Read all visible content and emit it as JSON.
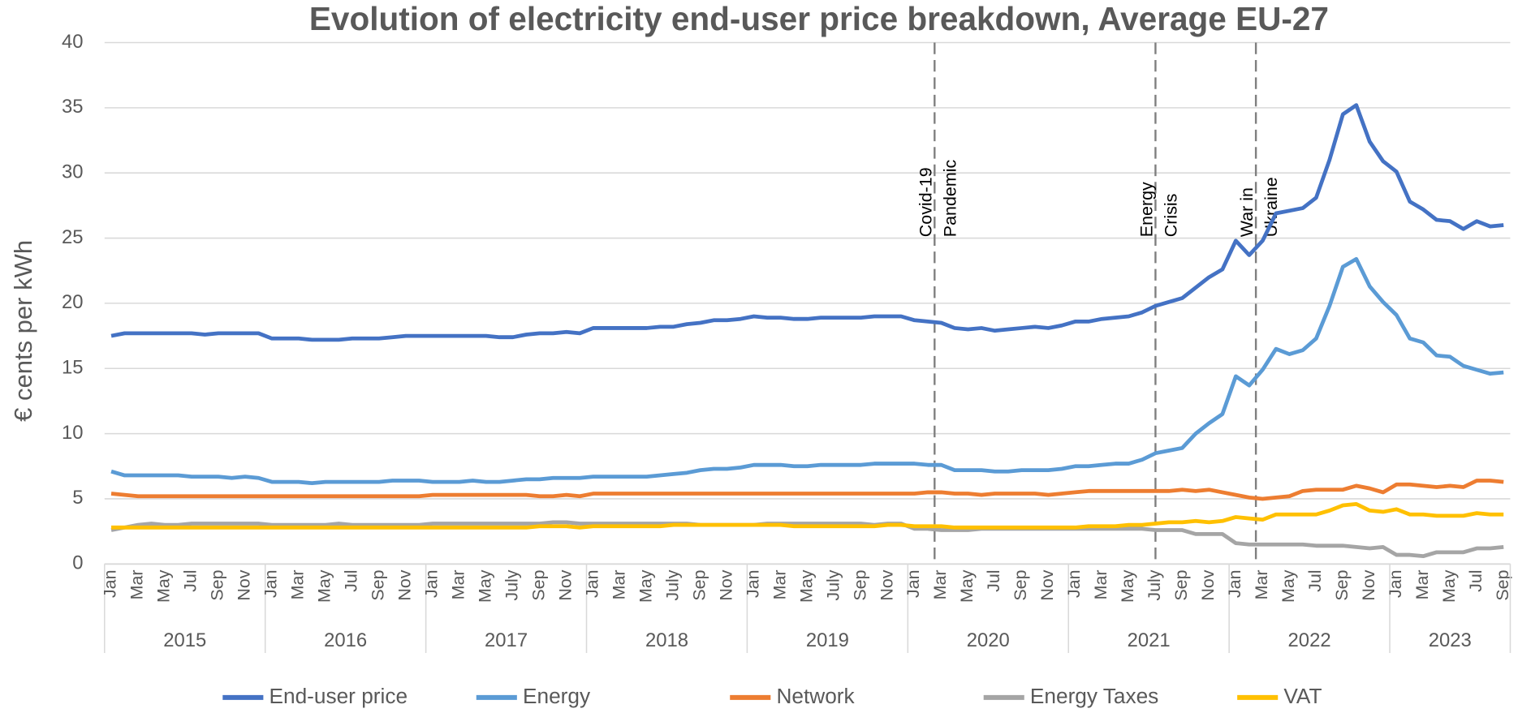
{
  "chart_data": {
    "type": "line",
    "title": "Evolution of electricity end-user price breakdown, Average EU-27",
    "y_label": "€ cents per kWh",
    "ylim": [
      0,
      40
    ],
    "yticks": [
      0,
      5,
      10,
      15,
      20,
      25,
      30,
      35,
      40
    ],
    "grid": true,
    "legend": "bottom",
    "category_groups": [
      {
        "label": "2015",
        "categories": [
          "Jan",
          null,
          "Mar",
          null,
          "May",
          null,
          "Jul",
          null,
          "Sep",
          null,
          "Nov",
          null
        ]
      },
      {
        "label": "2016",
        "categories": [
          "Jan",
          null,
          "Mar",
          null,
          "May",
          null,
          "Jul",
          null,
          "Sep",
          null,
          "Nov",
          null
        ]
      },
      {
        "label": "2017",
        "categories": [
          "Jan",
          null,
          "Mar",
          null,
          "May",
          null,
          "July",
          null,
          "Sep",
          null,
          "Nov",
          null
        ]
      },
      {
        "label": "2018",
        "categories": [
          "Jan",
          null,
          "Mar",
          null,
          "May",
          null,
          "July",
          null,
          "Sep",
          null,
          "Nov",
          null
        ]
      },
      {
        "label": "2019",
        "categories": [
          "Jan",
          null,
          "Mar",
          null,
          "May",
          null,
          "July",
          null,
          "Sep",
          null,
          "Nov",
          null
        ]
      },
      {
        "label": "2020",
        "categories": [
          "Jan",
          null,
          "Mar",
          null,
          "May",
          null,
          "Jul",
          null,
          "Sep",
          null,
          "Nov",
          null
        ]
      },
      {
        "label": "2021",
        "categories": [
          "Jan",
          null,
          "Mar",
          null,
          "May",
          null,
          "July",
          null,
          "Sep",
          null,
          "Nov",
          null
        ]
      },
      {
        "label": "2022",
        "categories": [
          "Jan",
          null,
          "Mar",
          null,
          "May",
          null,
          "Jul",
          null,
          "Sep",
          null,
          "Nov",
          null
        ]
      },
      {
        "label": "2023",
        "categories": [
          "Jan",
          null,
          "Mar",
          null,
          "May",
          null,
          "Jul",
          null,
          "Sep"
        ]
      }
    ],
    "events": [
      {
        "label": [
          "Covid-19",
          "Pandemic"
        ],
        "x": 61.5
      },
      {
        "label": [
          "Energy",
          "Crisis"
        ],
        "x": 78
      },
      {
        "label": [
          "War in",
          "Ukraine"
        ],
        "x": 85.5
      }
    ],
    "series": [
      {
        "name": "End-user price",
        "color": "#4472c4",
        "values": [
          17.5,
          17.7,
          17.7,
          17.7,
          17.7,
          17.7,
          17.7,
          17.6,
          17.7,
          17.7,
          17.7,
          17.7,
          17.3,
          17.3,
          17.3,
          17.2,
          17.2,
          17.2,
          17.3,
          17.3,
          17.3,
          17.4,
          17.5,
          17.5,
          17.5,
          17.5,
          17.5,
          17.5,
          17.5,
          17.4,
          17.4,
          17.6,
          17.7,
          17.7,
          17.8,
          17.7,
          18.1,
          18.1,
          18.1,
          18.1,
          18.1,
          18.2,
          18.2,
          18.4,
          18.5,
          18.7,
          18.7,
          18.8,
          19.0,
          18.9,
          18.9,
          18.8,
          18.8,
          18.9,
          18.9,
          18.9,
          18.9,
          19.0,
          19.0,
          19.0,
          18.7,
          18.6,
          18.5,
          18.1,
          18.0,
          18.1,
          17.9,
          18.0,
          18.1,
          18.2,
          18.1,
          18.3,
          18.6,
          18.6,
          18.8,
          18.9,
          19.0,
          19.3,
          19.8,
          20.1,
          20.4,
          21.2,
          22.0,
          22.6,
          24.8,
          23.7,
          24.8,
          26.9,
          27.1,
          27.3,
          28.1,
          31.0,
          34.5,
          35.2,
          32.4,
          30.9,
          30.1,
          27.8,
          27.2,
          26.4,
          26.3,
          25.7,
          26.3,
          25.9,
          26.0
        ]
      },
      {
        "name": "Energy",
        "color": "#5b9bd5",
        "values": [
          7.1,
          6.8,
          6.8,
          6.8,
          6.8,
          6.8,
          6.7,
          6.7,
          6.7,
          6.6,
          6.7,
          6.6,
          6.3,
          6.3,
          6.3,
          6.2,
          6.3,
          6.3,
          6.3,
          6.3,
          6.3,
          6.4,
          6.4,
          6.4,
          6.3,
          6.3,
          6.3,
          6.4,
          6.3,
          6.3,
          6.4,
          6.5,
          6.5,
          6.6,
          6.6,
          6.6,
          6.7,
          6.7,
          6.7,
          6.7,
          6.7,
          6.8,
          6.9,
          7.0,
          7.2,
          7.3,
          7.3,
          7.4,
          7.6,
          7.6,
          7.6,
          7.5,
          7.5,
          7.6,
          7.6,
          7.6,
          7.6,
          7.7,
          7.7,
          7.7,
          7.7,
          7.6,
          7.6,
          7.2,
          7.2,
          7.2,
          7.1,
          7.1,
          7.2,
          7.2,
          7.2,
          7.3,
          7.5,
          7.5,
          7.6,
          7.7,
          7.7,
          8.0,
          8.5,
          8.7,
          8.9,
          10.0,
          10.8,
          11.5,
          14.4,
          13.7,
          14.9,
          16.5,
          16.1,
          16.4,
          17.3,
          19.8,
          22.8,
          23.4,
          21.3,
          20.1,
          19.1,
          17.3,
          17.0,
          16.0,
          15.9,
          15.2,
          14.9,
          14.6,
          14.7
        ]
      },
      {
        "name": "Network",
        "color": "#ed7d31",
        "values": [
          5.4,
          5.3,
          5.2,
          5.2,
          5.2,
          5.2,
          5.2,
          5.2,
          5.2,
          5.2,
          5.2,
          5.2,
          5.2,
          5.2,
          5.2,
          5.2,
          5.2,
          5.2,
          5.2,
          5.2,
          5.2,
          5.2,
          5.2,
          5.2,
          5.3,
          5.3,
          5.3,
          5.3,
          5.3,
          5.3,
          5.3,
          5.3,
          5.2,
          5.2,
          5.3,
          5.2,
          5.4,
          5.4,
          5.4,
          5.4,
          5.4,
          5.4,
          5.4,
          5.4,
          5.4,
          5.4,
          5.4,
          5.4,
          5.4,
          5.4,
          5.4,
          5.4,
          5.4,
          5.4,
          5.4,
          5.4,
          5.4,
          5.4,
          5.4,
          5.4,
          5.4,
          5.5,
          5.5,
          5.4,
          5.4,
          5.3,
          5.4,
          5.4,
          5.4,
          5.4,
          5.3,
          5.4,
          5.5,
          5.6,
          5.6,
          5.6,
          5.6,
          5.6,
          5.6,
          5.6,
          5.7,
          5.6,
          5.7,
          5.5,
          5.3,
          5.1,
          5.0,
          5.1,
          5.2,
          5.6,
          5.7,
          5.7,
          5.7,
          6.0,
          5.8,
          5.5,
          6.1,
          6.1,
          6.0,
          5.9,
          6.0,
          5.9,
          6.4,
          6.4,
          6.3
        ]
      },
      {
        "name": "Energy Taxes",
        "color": "#a5a5a5",
        "values": [
          2.6,
          2.8,
          3.0,
          3.1,
          3.0,
          3.0,
          3.1,
          3.1,
          3.1,
          3.1,
          3.1,
          3.1,
          3.0,
          3.0,
          3.0,
          3.0,
          3.0,
          3.1,
          3.0,
          3.0,
          3.0,
          3.0,
          3.0,
          3.0,
          3.1,
          3.1,
          3.1,
          3.1,
          3.1,
          3.1,
          3.1,
          3.1,
          3.1,
          3.2,
          3.2,
          3.1,
          3.1,
          3.1,
          3.1,
          3.1,
          3.1,
          3.1,
          3.1,
          3.1,
          3.0,
          3.0,
          3.0,
          3.0,
          3.0,
          3.1,
          3.1,
          3.1,
          3.1,
          3.1,
          3.1,
          3.1,
          3.1,
          3.0,
          3.1,
          3.1,
          2.7,
          2.7,
          2.6,
          2.6,
          2.6,
          2.7,
          2.7,
          2.7,
          2.7,
          2.7,
          2.7,
          2.7,
          2.7,
          2.7,
          2.7,
          2.7,
          2.7,
          2.7,
          2.6,
          2.6,
          2.6,
          2.3,
          2.3,
          2.3,
          1.6,
          1.5,
          1.5,
          1.5,
          1.5,
          1.5,
          1.4,
          1.4,
          1.4,
          1.3,
          1.2,
          1.3,
          0.7,
          0.7,
          0.6,
          0.9,
          0.9,
          0.9,
          1.2,
          1.2,
          1.3
        ]
      },
      {
        "name": "VAT",
        "color": "#ffc000",
        "values": [
          2.8,
          2.8,
          2.8,
          2.8,
          2.8,
          2.8,
          2.8,
          2.8,
          2.8,
          2.8,
          2.8,
          2.8,
          2.8,
          2.8,
          2.8,
          2.8,
          2.8,
          2.8,
          2.8,
          2.8,
          2.8,
          2.8,
          2.8,
          2.8,
          2.8,
          2.8,
          2.8,
          2.8,
          2.8,
          2.8,
          2.8,
          2.8,
          2.9,
          2.9,
          2.9,
          2.8,
          2.9,
          2.9,
          2.9,
          2.9,
          2.9,
          2.9,
          3.0,
          3.0,
          3.0,
          3.0,
          3.0,
          3.0,
          3.0,
          3.0,
          3.0,
          2.9,
          2.9,
          2.9,
          2.9,
          2.9,
          2.9,
          2.9,
          3.0,
          3.0,
          2.9,
          2.9,
          2.9,
          2.8,
          2.8,
          2.8,
          2.8,
          2.8,
          2.8,
          2.8,
          2.8,
          2.8,
          2.8,
          2.9,
          2.9,
          2.9,
          3.0,
          3.0,
          3.1,
          3.2,
          3.2,
          3.3,
          3.2,
          3.3,
          3.6,
          3.5,
          3.4,
          3.8,
          3.8,
          3.8,
          3.8,
          4.1,
          4.5,
          4.6,
          4.1,
          4.0,
          4.2,
          3.8,
          3.8,
          3.7,
          3.7,
          3.7,
          3.9,
          3.8,
          3.8
        ]
      }
    ]
  }
}
